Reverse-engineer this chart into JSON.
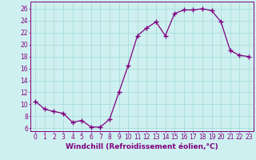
{
  "x": [
    0,
    1,
    2,
    3,
    4,
    5,
    6,
    7,
    8,
    9,
    10,
    11,
    12,
    13,
    14,
    15,
    16,
    17,
    18,
    19,
    20,
    21,
    22,
    23
  ],
  "y": [
    10.5,
    9.2,
    8.8,
    8.5,
    7.0,
    7.3,
    6.2,
    6.2,
    7.5,
    12.0,
    16.5,
    21.5,
    22.8,
    23.8,
    21.5,
    25.2,
    25.8,
    25.8,
    26.0,
    25.7,
    23.8,
    19.0,
    18.2,
    18.0
  ],
  "line_color": "#800080",
  "marker": "+",
  "markersize": 4,
  "linewidth": 0.9,
  "bg_color": "#cff0f0",
  "grid_color": "#a0d8d8",
  "xlabel": "Windchill (Refroidissement éolien,°C)",
  "xlabel_fontsize": 6.5,
  "ylabel_ticks": [
    6,
    8,
    10,
    12,
    14,
    16,
    18,
    20,
    22,
    24,
    26
  ],
  "xlim": [
    -0.5,
    23.5
  ],
  "ylim": [
    5.5,
    27.2
  ],
  "tick_fontsize": 5.5,
  "xtick_labels": [
    "0",
    "1",
    "2",
    "3",
    "4",
    "5",
    "6",
    "7",
    "8",
    "9",
    "10",
    "11",
    "12",
    "13",
    "14",
    "15",
    "16",
    "17",
    "18",
    "19",
    "20",
    "21",
    "22",
    "23"
  ]
}
